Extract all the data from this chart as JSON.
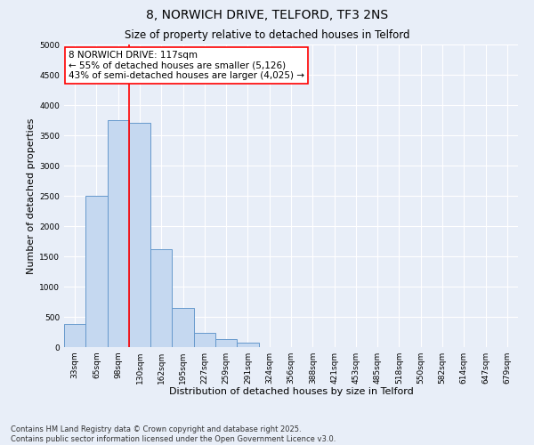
{
  "title_line1": "8, NORWICH DRIVE, TELFORD, TF3 2NS",
  "title_line2": "Size of property relative to detached houses in Telford",
  "xlabel": "Distribution of detached houses by size in Telford",
  "ylabel": "Number of detached properties",
  "categories": [
    "33sqm",
    "65sqm",
    "98sqm",
    "130sqm",
    "162sqm",
    "195sqm",
    "227sqm",
    "259sqm",
    "291sqm",
    "324sqm",
    "356sqm",
    "388sqm",
    "421sqm",
    "453sqm",
    "485sqm",
    "518sqm",
    "550sqm",
    "582sqm",
    "614sqm",
    "647sqm",
    "679sqm"
  ],
  "values": [
    380,
    2500,
    3750,
    3700,
    1620,
    640,
    230,
    130,
    80,
    0,
    0,
    0,
    0,
    0,
    0,
    0,
    0,
    0,
    0,
    0,
    0
  ],
  "bar_color": "#c5d8f0",
  "bar_edge_color": "#6699cc",
  "vline_x": 2.5,
  "vline_color": "red",
  "annotation_text": "8 NORWICH DRIVE: 117sqm\n← 55% of detached houses are smaller (5,126)\n43% of semi-detached houses are larger (4,025) →",
  "annotation_box_color": "white",
  "annotation_box_edge_color": "red",
  "ylim": [
    0,
    5000
  ],
  "yticks": [
    0,
    500,
    1000,
    1500,
    2000,
    2500,
    3000,
    3500,
    4000,
    4500,
    5000
  ],
  "background_color": "#e8eef8",
  "grid_color": "white",
  "footer_line1": "Contains HM Land Registry data © Crown copyright and database right 2025.",
  "footer_line2": "Contains public sector information licensed under the Open Government Licence v3.0.",
  "title_fontsize": 10,
  "subtitle_fontsize": 8.5,
  "axis_label_fontsize": 8,
  "tick_fontsize": 6.5,
  "annotation_fontsize": 7.5,
  "footer_fontsize": 6
}
